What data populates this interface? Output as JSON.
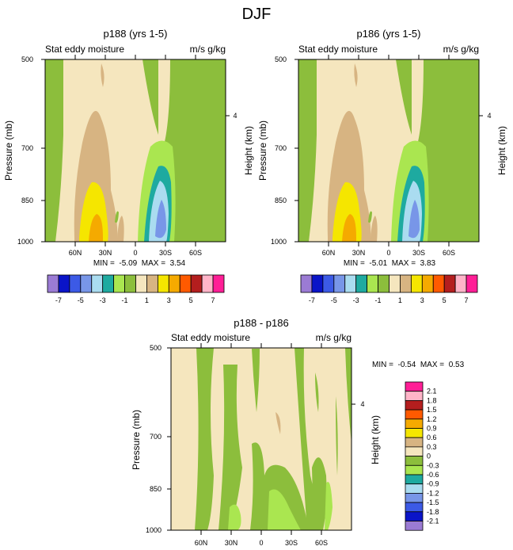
{
  "page_title": "DJF",
  "chart_data": [
    {
      "type": "heatmap",
      "title": "p188 (yrs 1-5)",
      "left_label": "Stat eddy moisture",
      "right_label": "m/s g/kg",
      "ylabel": "Pressure (mb)",
      "y2label": "Height (km)",
      "y_ticks": [
        "500",
        "700",
        "850",
        "1000"
      ],
      "y2_ticks": [
        "4"
      ],
      "x_ticks": [
        "60N",
        "30N",
        "0",
        "30S",
        "60S"
      ],
      "min_label": "MIN = ",
      "min_value": "-5.09",
      "max_label": "MAX = ",
      "max_value": "3.54",
      "stats_text": "MIN =  -5.09  MAX =  3.54",
      "features": [
        {
          "lat": 25,
          "p": 950,
          "value": 3.5
        },
        {
          "lat": 22,
          "p": 870,
          "value": 2
        },
        {
          "lat": -22,
          "p": 900,
          "value": -5
        },
        {
          "lat": -20,
          "p": 800,
          "value": -2
        }
      ]
    },
    {
      "type": "heatmap",
      "title": "p186 (yrs 1-5)",
      "left_label": "Stat eddy moisture",
      "right_label": "m/s g/kg",
      "ylabel": "Pressure (mb)",
      "y2label": "Height (km)",
      "y_ticks": [
        "500",
        "700",
        "850",
        "1000"
      ],
      "y2_ticks": [
        "4"
      ],
      "x_ticks": [
        "60N",
        "30N",
        "0",
        "30S",
        "60S"
      ],
      "min_label": "MIN = ",
      "min_value": "-5.01",
      "max_label": "MAX = ",
      "max_value": "3.83",
      "stats_text": "MIN =  -5.01  MAX =  3.83",
      "features": [
        {
          "lat": 25,
          "p": 950,
          "value": 3.8
        },
        {
          "lat": 22,
          "p": 870,
          "value": 2
        },
        {
          "lat": -22,
          "p": 900,
          "value": -5
        },
        {
          "lat": -20,
          "p": 800,
          "value": -2
        }
      ]
    },
    {
      "type": "heatmap",
      "title": "p188 - p186",
      "left_label": "Stat eddy moisture",
      "right_label": "m/s g/kg",
      "ylabel": "Pressure (mb)",
      "y2label": "Height (km)",
      "y_ticks": [
        "500",
        "700",
        "850",
        "1000"
      ],
      "y2_ticks": [
        "4"
      ],
      "x_ticks": [
        "60N",
        "30N",
        "0",
        "30S",
        "60S"
      ],
      "min_label": "MIN = ",
      "min_value": "-0.54",
      "max_label": "MAX = ",
      "max_value": "0.53",
      "stats_text": "MIN =  -0.54  MAX =  0.53",
      "features": [
        {
          "lat": 70,
          "p": 700,
          "value": -0.4
        },
        {
          "lat": 35,
          "p": 750,
          "value": -0.3
        },
        {
          "lat": 5,
          "p": 800,
          "value": -0.4
        },
        {
          "lat": -15,
          "p": 900,
          "value": -0.5
        },
        {
          "lat": -60,
          "p": 750,
          "value": -0.3
        }
      ]
    }
  ],
  "colorbar_top": {
    "colors": [
      "#9b7bd4",
      "#0a14c8",
      "#3c5ae6",
      "#7896e8",
      "#aadcf0",
      "#1eaaa0",
      "#aae650",
      "#8cbe3c",
      "#f5e6be",
      "#d7b482",
      "#f5e600",
      "#f5aa00",
      "#ff5a00",
      "#b41e1e",
      "#ffb4c8",
      "#ff1e96"
    ],
    "labels": [
      "-7",
      "-5",
      "-3",
      "-1",
      "1",
      "3",
      "5",
      "7"
    ]
  },
  "colorbar_bottom": {
    "colors": [
      "#ff1e96",
      "#ffb4c8",
      "#b41e1e",
      "#ff5a00",
      "#f5aa00",
      "#f5e600",
      "#d7b482",
      "#f5e6be",
      "#8cbe3c",
      "#aae650",
      "#1eaaa0",
      "#aadcf0",
      "#7896e8",
      "#3c5ae6",
      "#0a14c8",
      "#9b7bd4"
    ],
    "labels": [
      "2.1",
      "1.8",
      "1.5",
      "1.2",
      "0.9",
      "0.6",
      "0.3",
      "0",
      "-0.3",
      "-0.6",
      "-0.9",
      "-1.2",
      "-1.5",
      "-1.8",
      "-2.1"
    ]
  }
}
